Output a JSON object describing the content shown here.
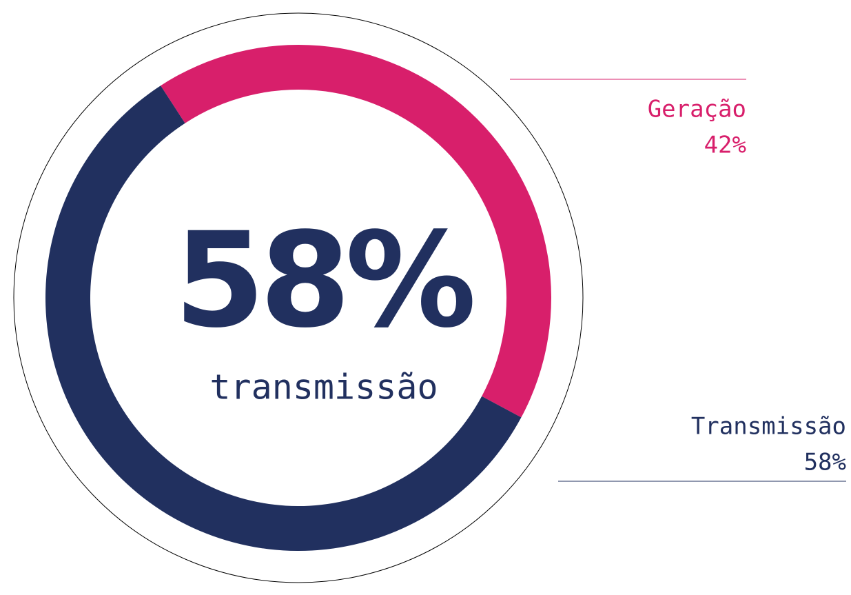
{
  "chart_data": {
    "type": "pie",
    "donut": true,
    "categories": [
      "Geração",
      "Transmissão"
    ],
    "values": [
      42,
      58
    ],
    "value_labels": [
      "42%",
      "58%"
    ],
    "colors": [
      "#d81f6b",
      "#21305f"
    ],
    "center_text": "58%",
    "center_caption": "transmissão"
  }
}
